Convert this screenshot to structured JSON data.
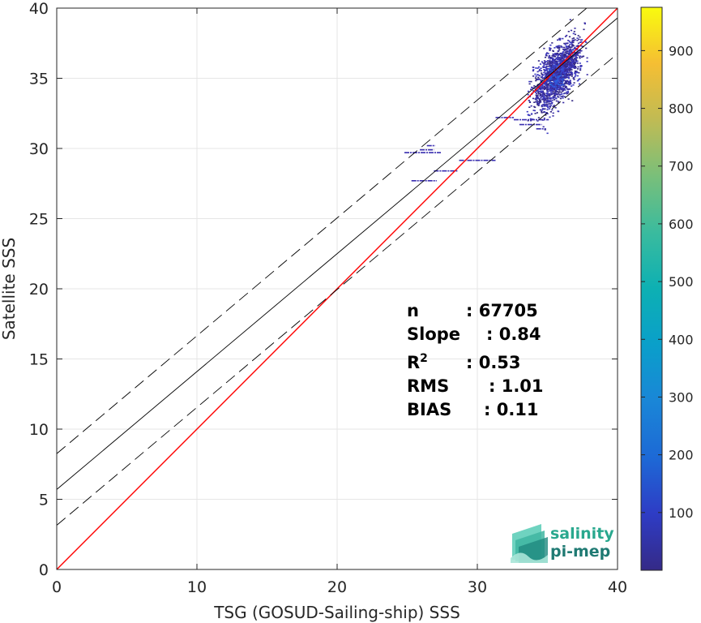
{
  "chart_data": {
    "type": "heatmap",
    "xlabel": "TSG (GOSUD-Sailing-ship) SSS",
    "ylabel": "Satellite SSS",
    "xlim": [
      0,
      40
    ],
    "ylim": [
      0,
      40
    ],
    "xticks": [
      0,
      10,
      20,
      30,
      40
    ],
    "yticks": [
      0,
      5,
      10,
      15,
      20,
      25,
      30,
      35,
      40
    ],
    "grid": true,
    "colorbar": {
      "range": [
        0,
        975
      ],
      "ticks": [
        100,
        200,
        300,
        400,
        500,
        600,
        700,
        800,
        900
      ],
      "colormap": "parula"
    },
    "lines": [
      {
        "name": "1:1",
        "slope": 1.0,
        "intercept": 0.0,
        "color": "#ff0000",
        "style": "solid"
      },
      {
        "name": "fit",
        "slope": 0.84,
        "intercept": 5.7,
        "color": "#000000",
        "style": "solid"
      },
      {
        "name": "fit+",
        "slope": 0.84,
        "intercept": 8.25,
        "color": "#000000",
        "style": "dashed"
      },
      {
        "name": "fit-",
        "slope": 0.84,
        "intercept": 3.15,
        "color": "#000000",
        "style": "dashed"
      }
    ],
    "density_cluster": {
      "x_center": 35.6,
      "y_center": 35.2,
      "x_range": [
        33.5,
        37.8
      ],
      "y_range": [
        30.5,
        39.5
      ],
      "peak_count": 200
    },
    "outlier_segments": [
      {
        "x": [
          24.8,
          27.4
        ],
        "y": 29.7
      },
      {
        "x": [
          26.4,
          27.0
        ],
        "y": 30.2
      },
      {
        "x": [
          25.9,
          26.9
        ],
        "y": 29.9
      },
      {
        "x": [
          26.9,
          28.6
        ],
        "y": 28.4
      },
      {
        "x": [
          25.3,
          27.1
        ],
        "y": 27.7
      },
      {
        "x": [
          28.7,
          31.3
        ],
        "y": 29.15
      },
      {
        "x": [
          31.3,
          32.6
        ],
        "y": 32.2
      },
      {
        "x": [
          32.6,
          35.1
        ],
        "y": 32.05
      },
      {
        "x": [
          33.0,
          34.6
        ],
        "y": 31.7
      },
      {
        "x": [
          34.2,
          34.9
        ],
        "y": 31.4
      }
    ],
    "stats": [
      {
        "label": "n",
        "sep": ":",
        "value": "67705"
      },
      {
        "label": "Slope",
        "sep": ":",
        "value": "0.84"
      },
      {
        "label": "R",
        "sup": "2",
        "sep": ":",
        "value": "0.53"
      },
      {
        "label": "RMS",
        "sep": ":",
        "value": "1.01"
      },
      {
        "label": "BIAS",
        "sep": ":",
        "value": "0.11"
      }
    ]
  },
  "logo": {
    "line1": "salinity",
    "line2": "pi-mep",
    "color1": "#29a88e",
    "color2": "#1f7a73"
  },
  "colors": {
    "one_to_one": "#ff0000",
    "fit": "#000000",
    "grid": "#e6e6e6"
  }
}
